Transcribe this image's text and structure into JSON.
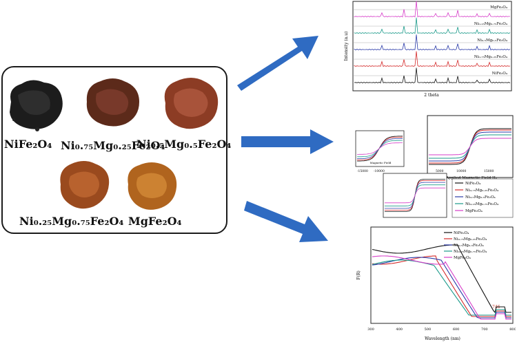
{
  "samples": [
    {
      "id": "nife2o4",
      "label": "NiFe₂O₄",
      "color": "#1a1a1a",
      "shade": "#3a3a3a"
    },
    {
      "id": "ni075",
      "label": "Ni₀.₇₅Mg₀.₂₅Fe₂O₄",
      "color": "#5a2a1a",
      "shade": "#7a3c28"
    },
    {
      "id": "ni05",
      "label": "Ni₀.₅Mg₀.₅Fe₂O₄",
      "color": "#8a3a22",
      "shade": "#a9513a"
    },
    {
      "id": "ni025",
      "label": "Ni₀.₂₅Mg₀.₇₅Fe₂O₄",
      "color": "#9a4a1e",
      "shade": "#b8642e"
    },
    {
      "id": "mgfe2o4",
      "label": "MgFe₂O₄",
      "color": "#b0641e",
      "shade": "#cc8030"
    }
  ],
  "xrd": {
    "ylabel": "Intensity (a.u)",
    "xlabel": "2 theta",
    "traces": [
      {
        "label": "MgFe₂O₄",
        "color": "#d63cc8"
      },
      {
        "label": "Ni₀.₂₅Mg₀.₇₅Fe₂O₄",
        "color": "#1a9a8a"
      },
      {
        "label": "Ni₀.₅Mg₀.₅Fe₂O₄",
        "color": "#2a3aa8"
      },
      {
        "label": "Ni₀.₇₅Mg₀.₂₅Fe₂O₄",
        "color": "#d42a2a"
      },
      {
        "label": "NiFe₂O₄",
        "color": "#111111"
      }
    ]
  },
  "vsm": {
    "xlabel": "Applied Magnetic Field Hₑ",
    "inset_xlabel": "Magnetic Field",
    "xticks": [
      "-15000",
      "-10000",
      "5000",
      "10000",
      "15000"
    ],
    "legend": [
      "NiFe₂O₄",
      "Ni₀.₇₅Mg₀.₂₅Fe₂O₄",
      "Ni₀.₅Mg₀.₅Fe₂O₄",
      "Ni₀.₂₅Mg₀.₇₅Fe₂O₄",
      "MgFe₂O₄"
    ],
    "colors": [
      "#111111",
      "#d42a2a",
      "#2a3aa8",
      "#1a9a8a",
      "#d63cc8"
    ]
  },
  "uv": {
    "ylabel": "F(R)",
    "xlabel": "Wavelength (nm)",
    "annotation": "746",
    "xticks": [
      "300",
      "400",
      "500",
      "600",
      "700",
      "800"
    ],
    "legend": [
      "NiFe₂O₄",
      "Ni₀.₇₅Mg₀.₂₅Fe₂O₄",
      "Ni₀.₅Mg₀.₅Fe₂O₄",
      "Ni₀.₂₅Mg₀.₇₅Fe₂O₄",
      "MgFe₂O₄"
    ],
    "colors": [
      "#111111",
      "#d42a2a",
      "#2a3aa8",
      "#1a9a8a",
      "#d63cc8"
    ]
  },
  "arrow_color": "#2f6bc2"
}
